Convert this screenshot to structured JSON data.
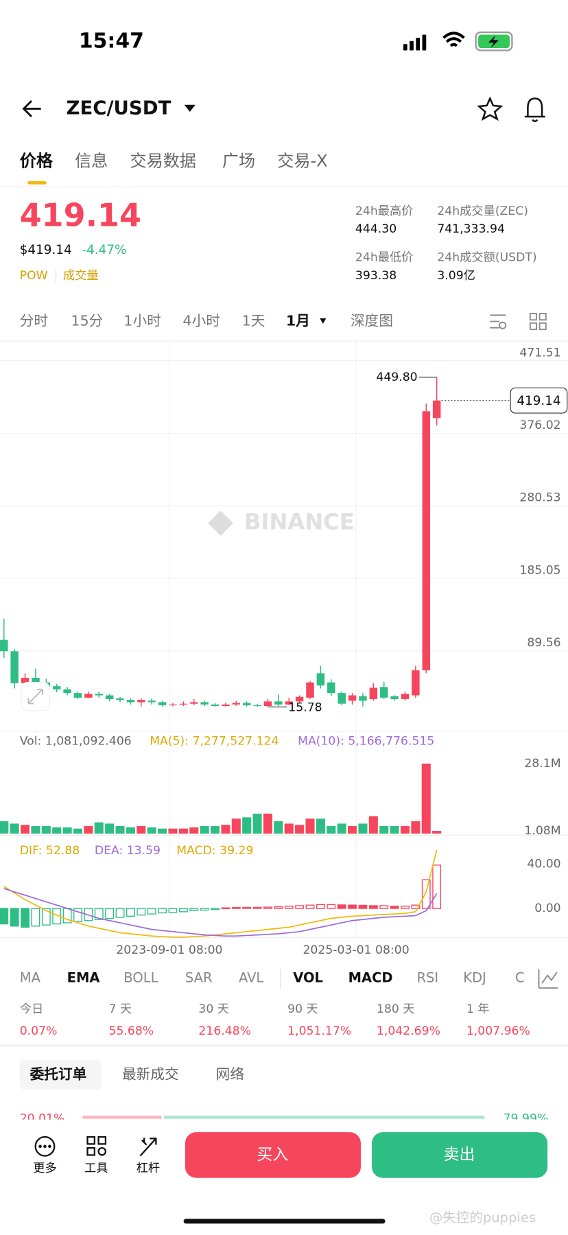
{
  "status": {
    "time": "15:47"
  },
  "header": {
    "pair": "ZEC/USDT"
  },
  "tabs": [
    "价格",
    "信息",
    "交易数据",
    "广场",
    "交易-X"
  ],
  "price": {
    "last": "419.14",
    "usd": "$419.14",
    "change": "-4.47%",
    "tags": [
      "POW",
      "成交量"
    ]
  },
  "stats": [
    {
      "label": "24h最高价",
      "value": "444.30"
    },
    {
      "label": "24h成交量(ZEC)",
      "value": "741,333.94"
    },
    {
      "label": "24h最低价",
      "value": "393.38"
    },
    {
      "label": "24h成交额(USDT)",
      "value": "3.09亿"
    }
  ],
  "intervals": [
    "分时",
    "15分",
    "1小时",
    "4小时",
    "1天",
    "1月",
    "深度图"
  ],
  "chart_data": {
    "type": "candlestick",
    "watermark": "BINANCE",
    "open": [
      104,
      89,
      47,
      54,
      48,
      43,
      39,
      34,
      28,
      33,
      31,
      27,
      25,
      22,
      24,
      22,
      18,
      19,
      20,
      22,
      19,
      17,
      19,
      21,
      18,
      17,
      23,
      19,
      23,
      28,
      60,
      48,
      34,
      24,
      30,
      26,
      42,
      30,
      26,
      31,
      64,
      396
    ],
    "high": [
      132,
      92,
      60,
      66,
      53,
      46,
      42,
      36,
      36,
      36,
      33,
      29,
      27,
      27,
      27,
      24,
      21,
      23,
      26,
      24,
      21,
      21,
      24,
      23,
      20,
      26,
      32,
      28,
      31,
      50,
      70,
      52,
      36,
      34,
      34,
      47,
      49,
      31,
      36,
      70,
      415,
      449.8
    ],
    "low": [
      80,
      40,
      45,
      44,
      40,
      35,
      31,
      26,
      27,
      28,
      23,
      22,
      19,
      16.5,
      19,
      16.2,
      16.5,
      17,
      18,
      17,
      16.1,
      16.3,
      17,
      16.4,
      16.2,
      15.78,
      17,
      18,
      21,
      26,
      40,
      30,
      18,
      19,
      16.5,
      24,
      26,
      24,
      24,
      28,
      60,
      386
    ],
    "close": [
      89,
      47,
      54,
      47,
      42,
      39,
      34,
      28,
      33,
      31,
      26,
      25,
      22,
      25,
      22,
      18,
      19,
      20,
      22,
      19,
      17,
      19,
      21,
      18,
      17,
      23,
      19,
      23,
      29,
      48,
      44,
      34,
      20,
      31,
      24,
      41,
      28,
      26,
      33,
      64,
      405,
      419.14
    ],
    "max_label": {
      "value": 449.8,
      "label": "449.80"
    },
    "min_label": {
      "value": 15.78,
      "label": "15.78"
    },
    "ylim": [
      -13,
      490
    ],
    "yticks": [
      471.51,
      376.02,
      280.53,
      185.05,
      89.56
    ],
    "x_labels": [
      "2023-09-01 08:00",
      "2025-03-01 08:00"
    ],
    "volume": {
      "label": "Vol: 1,081,092.406",
      "ma5": "MA(5): 7,277,527.124",
      "ma10": "MA(10): 5,166,776.515",
      "values": [
        5,
        4,
        3.5,
        3,
        3,
        2.5,
        2.5,
        2,
        3,
        4.5,
        4,
        3,
        2.5,
        3,
        2.5,
        2,
        2,
        2,
        2.5,
        3,
        3,
        3.5,
        6,
        6.5,
        8,
        8,
        5,
        4,
        3.5,
        6,
        6,
        3,
        4,
        3,
        4,
        7,
        3,
        3,
        3,
        5,
        28.1,
        1.081
      ],
      "ylim": [
        0,
        31
      ],
      "yticks": [
        {
          "value": 28.1,
          "label": "28.1M"
        },
        {
          "value": 1.08,
          "label": "1.08M"
        }
      ]
    },
    "macd": {
      "dif_label": "DIF: 52.88",
      "dea_label": "DEA: 13.59",
      "macd_label": "MACD: 39.29",
      "hist": [
        -14,
        -16,
        -17,
        -16,
        -15,
        -14,
        -13,
        -12,
        -11,
        -10,
        -9,
        -8,
        -7,
        -6,
        -5,
        -4,
        -3.5,
        -3,
        -2,
        -1.5,
        -1,
        0.5,
        0.8,
        1,
        1,
        1.2,
        1.5,
        2,
        2.5,
        3,
        3.5,
        3.5,
        3.2,
        3,
        2.8,
        2.5,
        2.5,
        2,
        2,
        3,
        26,
        39.29
      ],
      "dif": [
        20,
        14,
        8,
        3,
        -2,
        -6,
        -10,
        -13,
        -16,
        -18,
        -20,
        -22,
        -23,
        -24,
        -25,
        -25.5,
        -26,
        -26,
        -25.5,
        -25,
        -24,
        -23,
        -22,
        -21,
        -20,
        -19,
        -18,
        -17,
        -15,
        -13,
        -11,
        -9,
        -8,
        -7,
        -6.5,
        -6,
        -5.5,
        -5,
        -4.5,
        -3,
        15,
        52.88
      ],
      "dea": [
        18,
        15,
        12,
        9,
        6,
        3,
        0,
        -3,
        -6,
        -9,
        -11,
        -13,
        -15,
        -17,
        -19,
        -20,
        -21,
        -22,
        -23,
        -24,
        -24.5,
        -25,
        -25,
        -24.5,
        -24,
        -23.5,
        -23,
        -22,
        -21,
        -19,
        -17,
        -15,
        -13,
        -11,
        -10,
        -9,
        -8,
        -7.5,
        -7,
        -6.5,
        -2,
        13.59
      ],
      "ylim": [
        -26.4,
        65
      ],
      "yticks": [
        {
          "value": 40,
          "label": "40.00"
        },
        {
          "value": 0,
          "label": "0.00"
        }
      ]
    }
  },
  "indicators": [
    "MA",
    "EMA",
    "BOLL",
    "SAR",
    "AVL",
    "VOL",
    "MACD",
    "RSI",
    "KDJ",
    "C"
  ],
  "returns": [
    {
      "period": "今日",
      "value": "0.07%"
    },
    {
      "period": "7 天",
      "value": "55.68%"
    },
    {
      "period": "30 天",
      "value": "216.48%"
    },
    {
      "period": "90 天",
      "value": "1,051.17%"
    },
    {
      "period": "180 天",
      "value": "1,042.69%"
    },
    {
      "period": "1 年",
      "value": "1,007.96%"
    }
  ],
  "order_tabs": [
    "委托订单",
    "最新成交",
    "网络"
  ],
  "depth": [
    "20.01%",
    "79.99%"
  ],
  "bottom": {
    "tools": [
      "更多",
      "工具",
      "杠杆"
    ],
    "buy": "买入",
    "sell": "卖出"
  },
  "watermark": "@失控的puppies"
}
